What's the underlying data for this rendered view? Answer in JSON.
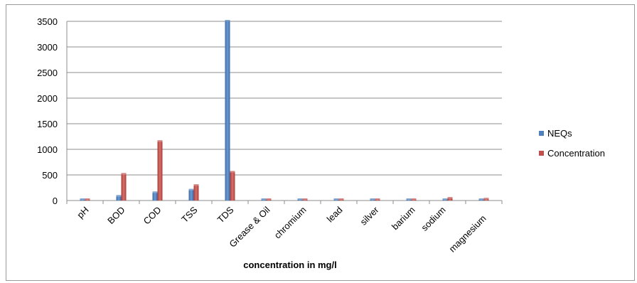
{
  "chart_data": {
    "type": "bar",
    "xlabel": "concentration in mg/l",
    "ylabel": "",
    "title": "",
    "ylim": [
      0,
      3500
    ],
    "yticks": [
      0,
      500,
      1000,
      1500,
      2000,
      2500,
      3000,
      3500
    ],
    "grid": true,
    "legend_position": "right",
    "categories": [
      "pH",
      "BOD",
      "COD",
      "TSS",
      "TDS",
      "Grease & Oil",
      "chromium",
      "lead",
      "silver",
      "barium",
      "sodium",
      "magnesium"
    ],
    "series": [
      {
        "name": "NEQs",
        "color": "#4F81BD",
        "values": [
          8,
          80,
          150,
          200,
          3500,
          10,
          1,
          1,
          1,
          1,
          1,
          1
        ]
      },
      {
        "name": "Concentration",
        "color": "#C0504D",
        "values": [
          7,
          510,
          1150,
          290,
          550,
          5,
          1,
          1,
          1,
          1,
          40,
          25
        ]
      }
    ]
  }
}
